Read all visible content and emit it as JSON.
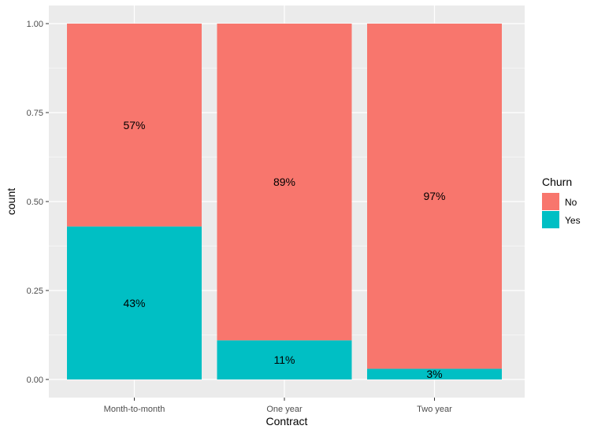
{
  "chart_data": {
    "type": "bar",
    "stacked": true,
    "position": "fill",
    "categories": [
      "Month-to-month",
      "One year",
      "Two year"
    ],
    "series": [
      {
        "name": "No",
        "values": [
          0.57,
          0.89,
          0.97
        ],
        "labels": [
          "57%",
          "89%",
          "97%"
        ],
        "color": "#F8766D"
      },
      {
        "name": "Yes",
        "values": [
          0.43,
          0.11,
          0.03
        ],
        "labels": [
          "43%",
          "11%",
          "3%"
        ],
        "color": "#00BFC4"
      }
    ],
    "xlabel": "Contract",
    "ylabel": "count",
    "ylim": [
      0,
      1
    ],
    "yticks": [
      0,
      0.25,
      0.5,
      0.75,
      1
    ],
    "ytick_labels": [
      "0.00",
      "0.25",
      "0.50",
      "0.75",
      "1.00"
    ],
    "grid": true,
    "panel_background": "#EBEBEB",
    "legend": {
      "title": "Churn",
      "position": "right",
      "entries": [
        {
          "label": "No",
          "color": "#F8766D"
        },
        {
          "label": "Yes",
          "color": "#00BFC4"
        }
      ]
    }
  }
}
